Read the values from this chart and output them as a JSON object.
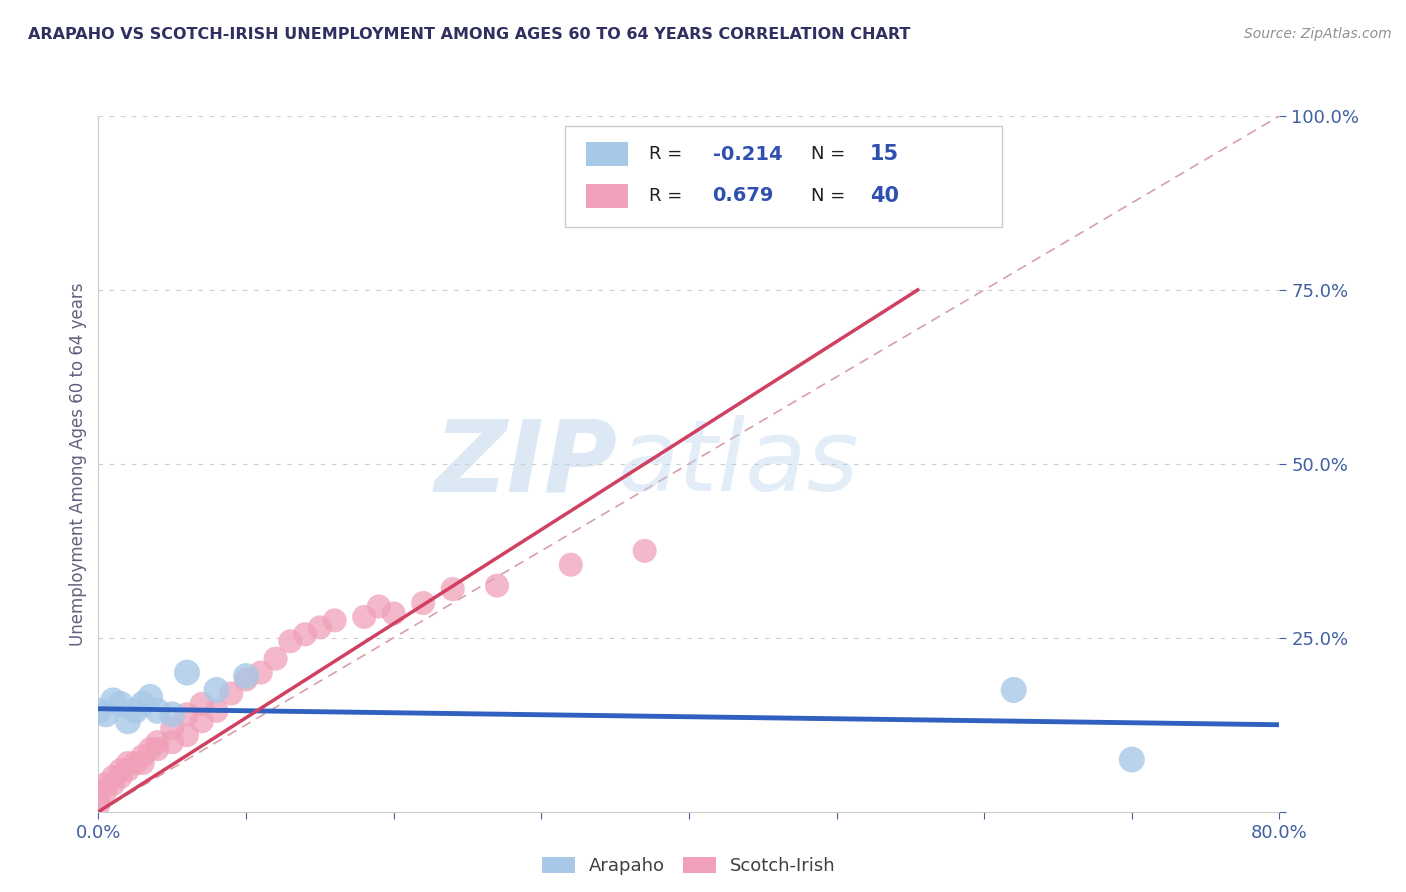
{
  "title": "ARAPAHO VS SCOTCH-IRISH UNEMPLOYMENT AMONG AGES 60 TO 64 YEARS CORRELATION CHART",
  "source": "Source: ZipAtlas.com",
  "ylabel": "Unemployment Among Ages 60 to 64 years",
  "xlim": [
    0.0,
    0.8
  ],
  "ylim": [
    0.0,
    1.0
  ],
  "arapaho_color": "#A8C8E8",
  "scotch_irish_color": "#F0A0B8",
  "arapaho_R": -0.214,
  "arapaho_N": 15,
  "scotch_irish_R": 0.679,
  "scotch_irish_N": 40,
  "arapaho_trend_color": "#3060C0",
  "scotch_irish_trend_color": "#D04060",
  "ref_line_color": "#D8A0A8",
  "background_color": "#FFFFFF",
  "watermark_zip": "ZIP",
  "watermark_atlas": "atlas",
  "title_color": "#303060",
  "axis_label_color": "#606080",
  "tick_color": "#4060A0",
  "legend_R_color": "#3050B0",
  "legend_N_color": "#202040",
  "arapaho_x": [
    0.0,
    0.005,
    0.01,
    0.015,
    0.02,
    0.025,
    0.03,
    0.035,
    0.04,
    0.05,
    0.06,
    0.08,
    0.1,
    0.62,
    0.7
  ],
  "arapaho_y": [
    0.145,
    0.14,
    0.16,
    0.155,
    0.13,
    0.145,
    0.155,
    0.165,
    0.145,
    0.14,
    0.2,
    0.175,
    0.195,
    0.175,
    0.075
  ],
  "scotch_irish_x": [
    0.0,
    0.0,
    0.0,
    0.005,
    0.005,
    0.01,
    0.01,
    0.015,
    0.015,
    0.02,
    0.02,
    0.025,
    0.03,
    0.03,
    0.035,
    0.04,
    0.04,
    0.05,
    0.05,
    0.06,
    0.06,
    0.07,
    0.07,
    0.08,
    0.09,
    0.1,
    0.11,
    0.12,
    0.13,
    0.14,
    0.15,
    0.16,
    0.18,
    0.19,
    0.2,
    0.22,
    0.24,
    0.27,
    0.32,
    0.37
  ],
  "scotch_irish_y": [
    0.01,
    0.02,
    0.03,
    0.03,
    0.04,
    0.04,
    0.05,
    0.05,
    0.06,
    0.06,
    0.07,
    0.07,
    0.07,
    0.08,
    0.09,
    0.09,
    0.1,
    0.1,
    0.12,
    0.11,
    0.14,
    0.13,
    0.155,
    0.145,
    0.17,
    0.19,
    0.2,
    0.22,
    0.245,
    0.255,
    0.265,
    0.275,
    0.28,
    0.295,
    0.285,
    0.3,
    0.32,
    0.325,
    0.355,
    0.375
  ],
  "arapaho_trend_x": [
    0.0,
    0.8
  ],
  "arapaho_trend_y": [
    0.148,
    0.125
  ],
  "scotch_irish_trend_x": [
    0.0,
    0.555
  ],
  "scotch_irish_trend_y": [
    0.0,
    0.75
  ]
}
